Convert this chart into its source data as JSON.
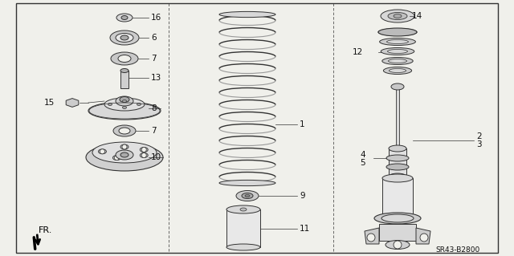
{
  "background_color": "#f5f5f0",
  "border_color": "#222222",
  "text_color": "#111111",
  "fig_width": 6.4,
  "fig_height": 3.19,
  "diagram_code": "SR43-B2800"
}
